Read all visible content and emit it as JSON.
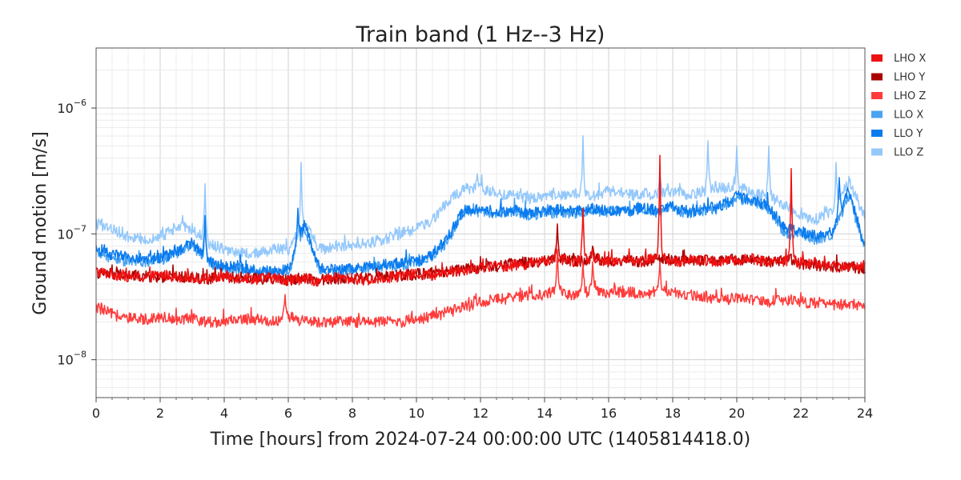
{
  "chart_data": {
    "type": "line",
    "title": "Train band (1 Hz--3 Hz)",
    "xlabel": "Time [hours] from 2024-07-24 00:00:00 UTC (1405814418.0)",
    "ylabel": "Ground motion [m/s]",
    "x_scale": "linear",
    "y_scale": "log",
    "xlim": [
      0,
      24
    ],
    "ylim": [
      5e-09,
      3e-06
    ],
    "x_ticks": [
      0,
      2,
      4,
      6,
      8,
      10,
      12,
      14,
      16,
      18,
      20,
      22,
      24
    ],
    "x_tick_labels": [
      "0",
      "2",
      "4",
      "6",
      "8",
      "10",
      "12",
      "14",
      "16",
      "18",
      "20",
      "22",
      "24"
    ],
    "y_ticks": [
      1e-08,
      1e-07,
      1e-06
    ],
    "y_tick_labels": [
      {
        "base": "10",
        "exp": "−8"
      },
      {
        "base": "10",
        "exp": "−7"
      },
      {
        "base": "10",
        "exp": "−6"
      }
    ],
    "grid": true,
    "legend_position": "right",
    "series": [
      {
        "name": "LHO X",
        "color": "#ee1111",
        "x": [
          0,
          0.5,
          1,
          1.5,
          2,
          2.5,
          3,
          3.5,
          4,
          4.5,
          5,
          5.5,
          6,
          6.5,
          7,
          7.5,
          8,
          8.5,
          9,
          9.5,
          10,
          10.5,
          11,
          11.5,
          12,
          12.5,
          13,
          13.5,
          14,
          14.4,
          14.8,
          15.2,
          15.5,
          16,
          16.5,
          17,
          17.6,
          18,
          18.5,
          19,
          19.5,
          20,
          20.5,
          21,
          21.7,
          22,
          22.5,
          23,
          23.5,
          24
        ],
        "values": [
          5e-08,
          4.8e-08,
          4.6e-08,
          4.5e-08,
          4.7e-08,
          4.6e-08,
          4.5e-08,
          4.4e-08,
          4.6e-08,
          4.5e-08,
          4.4e-08,
          4.5e-08,
          4.3e-08,
          4.4e-08,
          4.2e-08,
          4.5e-08,
          4.4e-08,
          4.3e-08,
          4.5e-08,
          4.6e-08,
          4.8e-08,
          4.7e-08,
          5e-08,
          5.2e-08,
          5.4e-08,
          5.5e-08,
          5.6e-08,
          5.8e-08,
          6e-08,
          6.5e-08,
          6e-08,
          6.2e-08,
          6.5e-08,
          6e-08,
          6.3e-08,
          6e-08,
          6.5e-08,
          6e-08,
          6.2e-08,
          6.1e-08,
          6e-08,
          6.2e-08,
          6.3e-08,
          6e-08,
          6.2e-08,
          5.9e-08,
          5.8e-08,
          5.5e-08,
          5.6e-08,
          5.5e-08
        ],
        "spikes": [
          [
            15.2,
            1.6e-07
          ],
          [
            17.6,
            4.2e-07
          ],
          [
            21.7,
            3.3e-07
          ]
        ]
      },
      {
        "name": "LHO Y",
        "color": "#aa0000",
        "x": [
          0,
          0.5,
          1,
          1.5,
          2,
          2.5,
          3,
          3.5,
          4,
          4.5,
          5,
          5.5,
          6,
          6.5,
          7,
          7.5,
          8,
          8.5,
          9,
          9.5,
          10,
          10.5,
          11,
          11.5,
          12,
          12.5,
          13,
          13.5,
          14,
          14.4,
          14.8,
          15.2,
          15.5,
          16,
          16.5,
          17,
          17.6,
          18,
          18.5,
          19,
          19.5,
          20,
          20.5,
          21,
          21.7,
          22,
          22.5,
          23,
          23.5,
          24
        ],
        "values": [
          4.9e-08,
          4.8e-08,
          4.7e-08,
          4.6e-08,
          4.5e-08,
          4.6e-08,
          4.5e-08,
          4.4e-08,
          4.5e-08,
          4.5e-08,
          4.4e-08,
          4.4e-08,
          4.3e-08,
          4.5e-08,
          4.3e-08,
          4.4e-08,
          4.4e-08,
          4.5e-08,
          4.6e-08,
          4.7e-08,
          4.8e-08,
          4.8e-08,
          5e-08,
          5.2e-08,
          5.4e-08,
          5.5e-08,
          5.8e-08,
          6e-08,
          6.1e-08,
          6.6e-08,
          6.2e-08,
          6e-08,
          6.5e-08,
          6e-08,
          6.2e-08,
          6e-08,
          6.4e-08,
          6.1e-08,
          6e-08,
          6.2e-08,
          6e-08,
          6.3e-08,
          6.2e-08,
          6e-08,
          6.3e-08,
          5.8e-08,
          5.6e-08,
          5.4e-08,
          5.5e-08,
          5.3e-08
        ],
        "spikes": [
          [
            14.4,
            1.2e-07
          ],
          [
            15.5,
            8e-08
          ]
        ]
      },
      {
        "name": "LHO Z",
        "color": "#ff3b3b",
        "x": [
          0,
          0.5,
          1,
          1.5,
          2,
          2.5,
          3,
          3.5,
          4,
          4.5,
          5,
          5.5,
          6,
          6.5,
          7,
          7.5,
          8,
          8.5,
          9,
          9.5,
          10,
          10.5,
          11,
          11.5,
          12,
          12.5,
          13,
          13.5,
          14,
          14.4,
          14.8,
          15.2,
          15.5,
          16,
          16.5,
          17,
          17.6,
          18,
          18.5,
          19,
          19.5,
          20,
          20.5,
          21,
          21.7,
          22,
          22.5,
          23,
          23.5,
          24
        ],
        "values": [
          2.6e-08,
          2.3e-08,
          2.1e-08,
          2.1e-08,
          2.2e-08,
          2.1e-08,
          2.1e-08,
          2e-08,
          2e-08,
          2.1e-08,
          2.1e-08,
          2e-08,
          2.2e-08,
          2e-08,
          2e-08,
          2e-08,
          2e-08,
          2e-08,
          2e-08,
          2e-08,
          2.1e-08,
          2.2e-08,
          2.4e-08,
          2.6e-08,
          2.9e-08,
          3e-08,
          3.1e-08,
          3.2e-08,
          3.3e-08,
          3.6e-08,
          3.3e-08,
          3.4e-08,
          3.5e-08,
          3.4e-08,
          3.5e-08,
          3.3e-08,
          3.5e-08,
          3.4e-08,
          3.3e-08,
          3.2e-08,
          3e-08,
          3.1e-08,
          3e-08,
          2.9e-08,
          3e-08,
          2.9e-08,
          2.8e-08,
          2.7e-08,
          2.8e-08,
          2.6e-08
        ],
        "spikes": [
          [
            5.9,
            3.3e-08
          ],
          [
            14.4,
            7.5e-08
          ],
          [
            15.2,
            6e-08
          ],
          [
            15.5,
            6e-08
          ],
          [
            17.6,
            6e-08
          ]
        ]
      },
      {
        "name": "LLO X",
        "color": "#4aa3f0",
        "x": [
          0,
          0.5,
          1,
          1.5,
          2,
          2.5,
          3,
          3.5,
          4,
          4.5,
          5,
          5.5,
          6,
          6.5,
          7,
          7.5,
          8,
          8.5,
          9,
          9.5,
          10,
          10.5,
          11,
          11.5,
          12,
          12.5,
          13,
          13.5,
          14,
          14.5,
          15,
          15.5,
          16,
          16.5,
          17,
          17.5,
          18,
          18.5,
          19,
          19.5,
          20,
          20.5,
          21,
          21.5,
          22,
          22.5,
          23,
          23.5,
          24
        ],
        "values": [
          7e-08,
          6.5e-08,
          6e-08,
          6e-08,
          6.2e-08,
          7e-08,
          8e-08,
          6e-08,
          5.3e-08,
          5.3e-08,
          5e-08,
          4.9e-08,
          5e-08,
          1.1e-07,
          5e-08,
          5e-08,
          5.2e-08,
          5.4e-08,
          5.5e-08,
          5.6e-08,
          5.8e-08,
          6.5e-08,
          9e-08,
          1.5e-07,
          1.5e-07,
          1.45e-07,
          1.5e-07,
          1.4e-07,
          1.45e-07,
          1.5e-07,
          1.45e-07,
          1.55e-07,
          1.5e-07,
          1.5e-07,
          1.55e-07,
          1.5e-07,
          1.6e-07,
          1.45e-07,
          1.55e-07,
          1.6e-07,
          1.9e-07,
          1.8e-07,
          1.6e-07,
          1e-07,
          1e-07,
          9e-08,
          1e-07,
          2e-07,
          7.5e-08
        ],
        "spikes": [
          [
            3.4,
            1.3e-07
          ],
          [
            6.3,
            1.5e-07
          ]
        ]
      },
      {
        "name": "LLO Y",
        "color": "#0a7bef",
        "x": [
          0,
          0.5,
          1,
          1.5,
          2,
          2.5,
          3,
          3.5,
          4,
          4.5,
          5,
          5.5,
          6,
          6.5,
          7,
          7.5,
          8,
          8.5,
          9,
          9.5,
          10,
          10.5,
          11,
          11.5,
          12,
          12.5,
          13,
          13.5,
          14,
          14.5,
          15,
          15.5,
          16,
          16.5,
          17,
          17.5,
          18,
          18.5,
          19,
          19.5,
          20,
          20.5,
          21,
          21.5,
          22,
          22.5,
          23,
          23.5,
          24
        ],
        "values": [
          7.5e-08,
          6.8e-08,
          6.5e-08,
          6.3e-08,
          6.4e-08,
          7.2e-08,
          8.5e-08,
          6.2e-08,
          5.5e-08,
          5.4e-08,
          5.1e-08,
          5e-08,
          5.2e-08,
          1.2e-07,
          5.1e-08,
          5.1e-08,
          5.3e-08,
          5.5e-08,
          5.7e-08,
          5.8e-08,
          6e-08,
          6.8e-08,
          9.5e-08,
          1.6e-07,
          1.55e-07,
          1.5e-07,
          1.55e-07,
          1.45e-07,
          1.5e-07,
          1.55e-07,
          1.5e-07,
          1.6e-07,
          1.55e-07,
          1.5e-07,
          1.6e-07,
          1.55e-07,
          1.65e-07,
          1.5e-07,
          1.6e-07,
          1.65e-07,
          2e-07,
          1.85e-07,
          1.65e-07,
          1.1e-07,
          1.05e-07,
          9.5e-08,
          1.05e-07,
          2.2e-07,
          8e-08
        ],
        "spikes": [
          [
            3.4,
            1.4e-07
          ],
          [
            6.3,
            1.6e-07
          ],
          [
            23.2,
            2.8e-07
          ]
        ]
      },
      {
        "name": "LLO Z",
        "color": "#94c8fb",
        "x": [
          0,
          0.5,
          1,
          1.5,
          2,
          2.5,
          3,
          3.5,
          4,
          4.5,
          5,
          5.5,
          6,
          6.5,
          7,
          7.5,
          8,
          8.5,
          9,
          9.5,
          10,
          10.5,
          11,
          11.5,
          12,
          12.5,
          13,
          13.5,
          14,
          14.5,
          15,
          15.5,
          16,
          16.5,
          17,
          17.5,
          18,
          18.5,
          19,
          19.5,
          20,
          20.5,
          21,
          21.5,
          22,
          22.5,
          23,
          23.5,
          24
        ],
        "values": [
          1.2e-07,
          1.1e-07,
          9.5e-08,
          9e-08,
          9.5e-08,
          1.1e-07,
          1.1e-07,
          8.5e-08,
          7.5e-08,
          7e-08,
          7e-08,
          7.5e-08,
          7.5e-08,
          1.2e-07,
          7.5e-08,
          8e-08,
          8e-08,
          8.5e-08,
          9e-08,
          1e-07,
          1.1e-07,
          1.3e-07,
          1.8e-07,
          2.3e-07,
          2.3e-07,
          2.1e-07,
          2e-07,
          1.9e-07,
          2e-07,
          2e-07,
          2.1e-07,
          2e-07,
          2.2e-07,
          2.1e-07,
          2e-07,
          2.1e-07,
          2.2e-07,
          2e-07,
          2.2e-07,
          2.3e-07,
          2.4e-07,
          2.1e-07,
          2e-07,
          1.7e-07,
          1.4e-07,
          1.3e-07,
          1.5e-07,
          2.6e-07,
          1.4e-07
        ],
        "spikes": [
          [
            2.7,
            1.4e-07
          ],
          [
            3.4,
            2.5e-07
          ],
          [
            6.4,
            3.7e-07
          ],
          [
            11.9,
            3e-07
          ],
          [
            15.2,
            6e-07
          ],
          [
            17.6,
            3e-07
          ],
          [
            19.1,
            5.5e-07
          ],
          [
            20.0,
            5e-07
          ],
          [
            21.0,
            5e-07
          ],
          [
            23.1,
            3.7e-07
          ]
        ]
      }
    ]
  }
}
